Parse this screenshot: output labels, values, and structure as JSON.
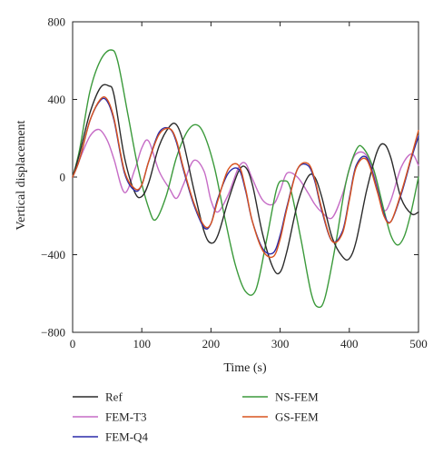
{
  "chart_data": {
    "type": "line",
    "xlabel": "Time (s)",
    "ylabel": "Vertical displacement",
    "xlim": [
      0,
      500
    ],
    "ylim": [
      -800,
      800
    ],
    "xticks": [
      0,
      100,
      200,
      300,
      400,
      500
    ],
    "yticks": [
      800,
      400,
      0,
      -400,
      -800
    ],
    "xtick_labels": [
      "0",
      "100",
      "200",
      "300",
      "400",
      "500"
    ],
    "ytick_labels": [
      "800",
      "400",
      "0",
      "−400",
      "−800"
    ],
    "grid": false,
    "legend_placement": "bottom",
    "series": [
      {
        "name": "Ref",
        "color": "#2b2b2b",
        "x": [
          0,
          10,
          25,
          40,
          52,
          60,
          75,
          90,
          100,
          110,
          125,
          140,
          150,
          160,
          175,
          190,
          200,
          210,
          225,
          240,
          250,
          260,
          275,
          290,
          300,
          310,
          325,
          340,
          350,
          360,
          375,
          390,
          400,
          410,
          425,
          440,
          450,
          460,
          475,
          490,
          500
        ],
        "y": [
          0,
          120,
          330,
          460,
          470,
          420,
          100,
          -80,
          -100,
          -30,
          160,
          260,
          270,
          180,
          -60,
          -280,
          -340,
          -300,
          -120,
          30,
          50,
          -40,
          -300,
          -470,
          -490,
          -380,
          -140,
          0,
          0,
          -100,
          -310,
          -410,
          -420,
          -330,
          -70,
          130,
          170,
          100,
          -110,
          -190,
          -180
        ]
      },
      {
        "name": "FEM-T3",
        "color": "#c66cc6",
        "x": [
          0,
          10,
          25,
          38,
          50,
          60,
          75,
          90,
          100,
          110,
          125,
          140,
          150,
          160,
          175,
          190,
          200,
          210,
          225,
          240,
          250,
          260,
          275,
          290,
          300,
          310,
          325,
          340,
          350,
          360,
          375,
          390,
          400,
          410,
          425,
          440,
          450,
          460,
          475,
          490,
          500
        ],
        "y": [
          0,
          90,
          210,
          245,
          190,
          90,
          -80,
          40,
          150,
          185,
          30,
          -60,
          -110,
          -40,
          85,
          30,
          -120,
          -180,
          -90,
          50,
          70,
          -10,
          -120,
          -140,
          -70,
          20,
          0,
          -80,
          -140,
          -180,
          -210,
          -90,
          40,
          120,
          110,
          -40,
          -170,
          -120,
          50,
          120,
          60
        ]
      },
      {
        "name": "FEM-Q4",
        "color": "#2a2aa8",
        "x": [
          0,
          10,
          25,
          40,
          50,
          60,
          75,
          90,
          100,
          110,
          125,
          140,
          150,
          160,
          175,
          190,
          200,
          210,
          225,
          240,
          250,
          260,
          275,
          290,
          300,
          310,
          325,
          340,
          350,
          360,
          375,
          390,
          400,
          410,
          425,
          440,
          450,
          460,
          475,
          490,
          500
        ],
        "y": [
          0,
          90,
          290,
          395,
          390,
          290,
          20,
          -70,
          -40,
          80,
          230,
          250,
          180,
          40,
          -140,
          -260,
          -240,
          -110,
          20,
          40,
          -70,
          -230,
          -370,
          -390,
          -300,
          -150,
          40,
          60,
          -20,
          -170,
          -330,
          -280,
          -110,
          60,
          100,
          -60,
          -190,
          -230,
          -90,
          100,
          210
        ]
      },
      {
        "name": "NS-FEM",
        "color": "#3b9a3b",
        "x": [
          0,
          10,
          25,
          40,
          55,
          65,
          80,
          95,
          110,
          120,
          135,
          150,
          165,
          178,
          190,
          205,
          220,
          235,
          250,
          265,
          280,
          295,
          305,
          315,
          330,
          345,
          355,
          365,
          380,
          395,
          410,
          420,
          435,
          450,
          460,
          470,
          480,
          490,
          500
        ],
        "y": [
          0,
          140,
          440,
          600,
          655,
          600,
          320,
          40,
          -160,
          -220,
          -100,
          100,
          230,
          270,
          220,
          50,
          -210,
          -450,
          -590,
          -580,
          -330,
          -60,
          -20,
          -60,
          -320,
          -600,
          -670,
          -620,
          -350,
          -30,
          140,
          150,
          40,
          -170,
          -300,
          -350,
          -300,
          -170,
          0
        ]
      },
      {
        "name": "GS-FEM",
        "color": "#d9531e",
        "x": [
          0,
          10,
          25,
          40,
          50,
          60,
          75,
          90,
          100,
          110,
          125,
          140,
          150,
          160,
          175,
          190,
          200,
          210,
          225,
          240,
          250,
          260,
          275,
          290,
          300,
          310,
          325,
          340,
          350,
          360,
          375,
          390,
          400,
          410,
          425,
          440,
          450,
          460,
          475,
          490,
          500
        ],
        "y": [
          0,
          90,
          290,
          400,
          400,
          300,
          30,
          -60,
          -40,
          80,
          220,
          250,
          190,
          50,
          -130,
          -250,
          -240,
          -120,
          40,
          60,
          -60,
          -230,
          -380,
          -410,
          -320,
          -160,
          40,
          70,
          -10,
          -160,
          -330,
          -290,
          -120,
          50,
          90,
          -70,
          -200,
          -230,
          -80,
          110,
          240
        ]
      }
    ]
  }
}
